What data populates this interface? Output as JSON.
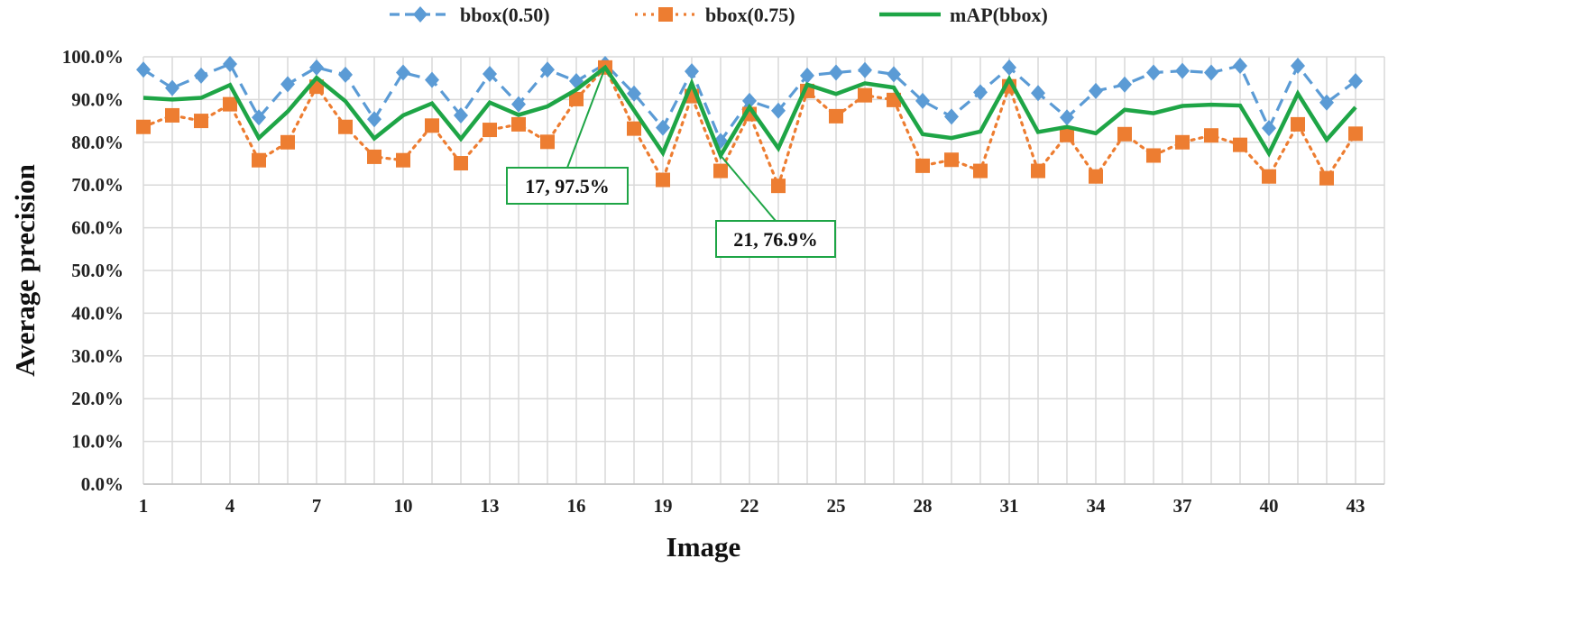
{
  "chart_data": {
    "type": "line",
    "title": "",
    "xlabel": "Image",
    "ylabel": "Average precision",
    "ylim": [
      0,
      100
    ],
    "y_ticks": [
      0,
      10,
      20,
      30,
      40,
      50,
      60,
      70,
      80,
      90,
      100
    ],
    "y_tick_labels": [
      "0.0%",
      "10.0%",
      "20.0%",
      "30.0%",
      "40.0%",
      "50.0%",
      "60.0%",
      "70.0%",
      "80.0%",
      "90.0%",
      "100.0%"
    ],
    "x": [
      1,
      2,
      3,
      4,
      5,
      6,
      7,
      8,
      9,
      10,
      11,
      12,
      13,
      14,
      15,
      16,
      17,
      18,
      19,
      20,
      21,
      22,
      23,
      24,
      25,
      26,
      27,
      28,
      29,
      30,
      31,
      32,
      33,
      34,
      35,
      36,
      37,
      38,
      39,
      40,
      41,
      42,
      43
    ],
    "x_tick_labels": [
      "1",
      "4",
      "7",
      "10",
      "13",
      "16",
      "19",
      "22",
      "25",
      "28",
      "31",
      "34",
      "37",
      "40",
      "43"
    ],
    "grid": true,
    "legend_position": "top",
    "series": [
      {
        "name": "bbox(0.50)",
        "color": "#5b9bd5",
        "line_style": "dashed",
        "marker": "diamond",
        "values": [
          97.0,
          92.7,
          95.6,
          98.3,
          85.8,
          93.6,
          97.5,
          95.8,
          85.4,
          96.3,
          94.6,
          86.3,
          96.0,
          88.9,
          97.0,
          94.3,
          98.3,
          91.4,
          83.4,
          96.6,
          80.3,
          89.7,
          87.4,
          95.6,
          96.3,
          96.9,
          95.9,
          89.7,
          86.0,
          91.7,
          97.5,
          91.5,
          85.8,
          92.0,
          93.5,
          96.3,
          96.7,
          96.3,
          97.9,
          83.3,
          97.9,
          89.3,
          94.3
        ]
      },
      {
        "name": "bbox(0.75)",
        "color": "#ed7d31",
        "line_style": "dotted",
        "marker": "square",
        "values": [
          83.6,
          86.3,
          85.0,
          88.9,
          75.8,
          80.0,
          93.0,
          83.6,
          76.6,
          75.8,
          83.9,
          75.1,
          82.9,
          84.2,
          80.1,
          90.1,
          97.5,
          83.2,
          71.2,
          90.8,
          73.3,
          86.6,
          69.8,
          92.0,
          86.1,
          91.0,
          89.9,
          74.5,
          75.9,
          73.3,
          93.1,
          73.3,
          81.7,
          72.0,
          81.9,
          76.9,
          80.0,
          81.6,
          79.4,
          72.0,
          84.2,
          71.6,
          82.0
        ]
      },
      {
        "name": "mAP(bbox)",
        "color": "#1ea546",
        "line_style": "solid",
        "marker": "none",
        "values": [
          90.4,
          90.0,
          90.4,
          93.4,
          81.0,
          87.2,
          95.1,
          89.6,
          80.9,
          86.3,
          89.1,
          80.8,
          89.3,
          86.4,
          88.4,
          92.3,
          97.5,
          87.5,
          77.5,
          93.8,
          76.9,
          88.2,
          78.6,
          93.5,
          91.3,
          93.8,
          92.8,
          81.9,
          81.0,
          82.5,
          94.8,
          82.4,
          83.6,
          82.1,
          87.6,
          86.8,
          88.5,
          88.8,
          88.6,
          77.4,
          91.4,
          80.6,
          88.2
        ]
      }
    ],
    "annotations": [
      {
        "series": "mAP(bbox)",
        "x": 17,
        "y": 97.5,
        "text": "17, 97.5%"
      },
      {
        "series": "mAP(bbox)",
        "x": 21,
        "y": 76.9,
        "text": "21, 76.9%"
      }
    ]
  }
}
